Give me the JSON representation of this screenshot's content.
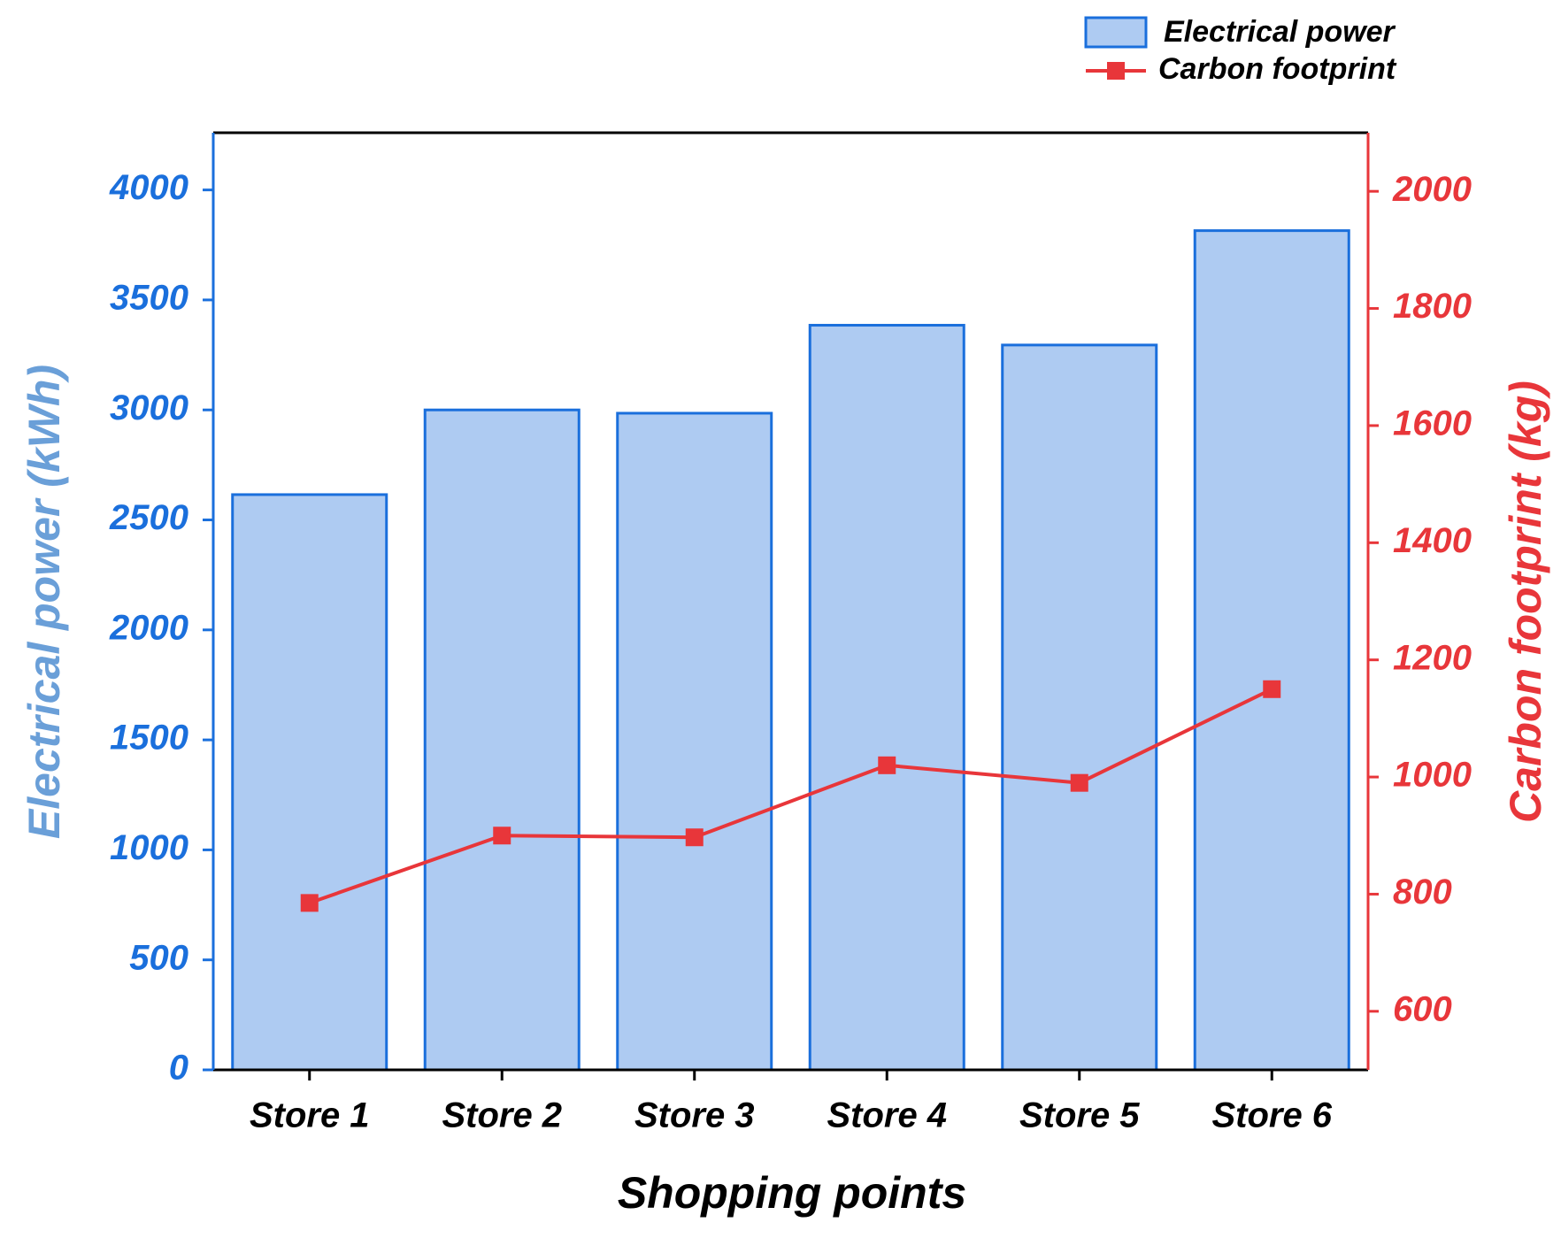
{
  "chart_data": {
    "type": "bar+line",
    "x_label": "Shopping points",
    "y_label": "Electrical power (kWh)",
    "y2_label": "Carbon footprint (kg)",
    "categories": [
      "Store 1",
      "Store 2",
      "Store 3",
      "Store 4",
      "Store 5",
      "Store 6"
    ],
    "series": [
      {
        "name": "Electrical power",
        "type": "bar",
        "color": "#aecbf2",
        "edge_color": "#1a6fdc",
        "values": [
          2615,
          3000,
          2985,
          3385,
          3295,
          3815
        ]
      },
      {
        "name": "Carbon footprint",
        "type": "line",
        "axis": "y2",
        "color": "#e8363a",
        "values": [
          785,
          900,
          897,
          1020,
          990,
          1150
        ]
      }
    ],
    "ylim": [
      0,
      4260
    ],
    "yticks": [
      0,
      500,
      1000,
      1500,
      2000,
      2500,
      3000,
      3500,
      4000
    ],
    "y2lim": [
      500,
      2100
    ],
    "y2ticks": [
      600,
      800,
      1000,
      1200,
      1400,
      1600,
      1800,
      2000
    ],
    "legend": "top-right"
  }
}
